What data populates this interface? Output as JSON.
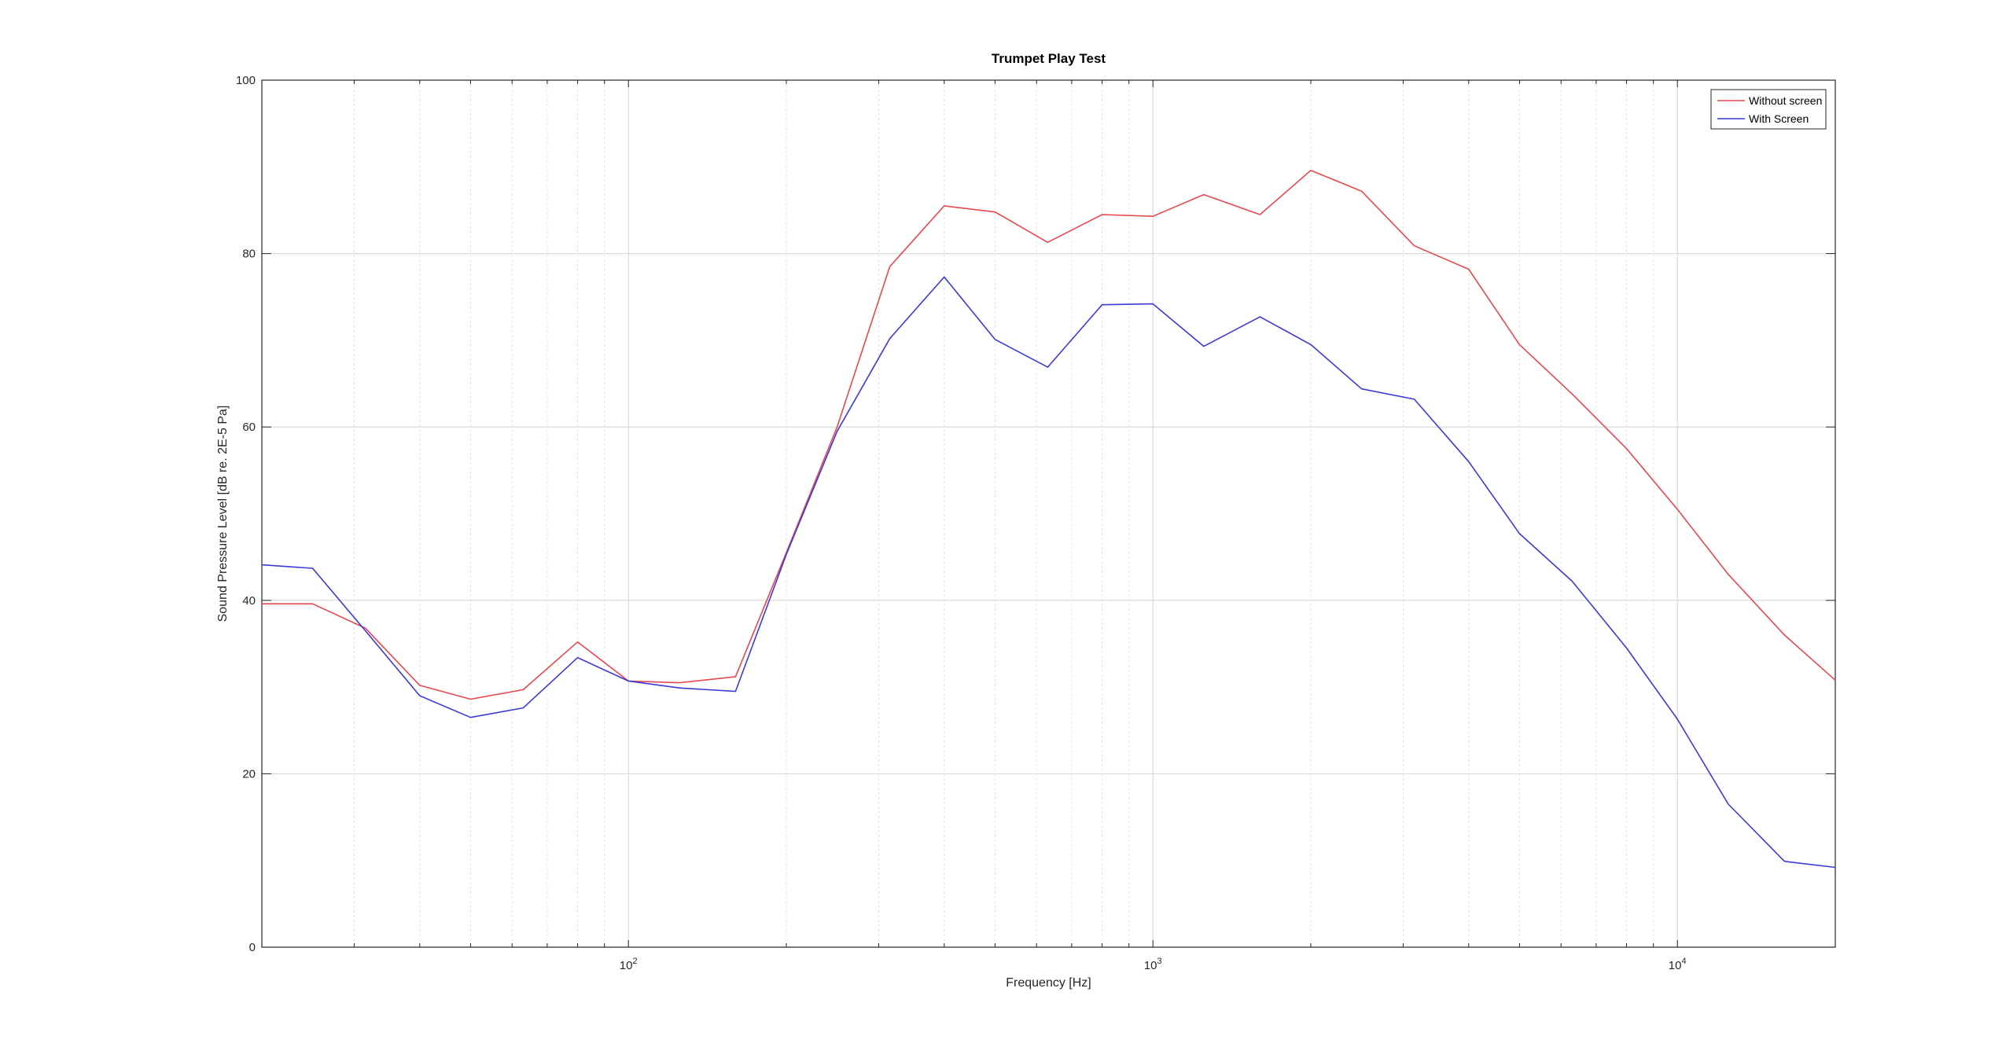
{
  "chart_data": {
    "type": "line",
    "title": "Trumpet Play Test",
    "xlabel": "Frequency [Hz]",
    "ylabel": "Sound Pressure Level [dB re. 2E-5 Pa]",
    "xscale": "log",
    "xlim": [
      20,
      20000
    ],
    "ylim": [
      0,
      100
    ],
    "yticks": [
      0,
      20,
      40,
      60,
      80,
      100
    ],
    "xticks": [
      {
        "value": 100,
        "base": "10",
        "exp": "2"
      },
      {
        "value": 1000,
        "base": "10",
        "exp": "3"
      },
      {
        "value": 10000,
        "base": "10",
        "exp": "4"
      }
    ],
    "grid": true,
    "legend_position": "top-right",
    "x": [
      20,
      25,
      31.5,
      40,
      50,
      63,
      80,
      100,
      125,
      160,
      200,
      250,
      315,
      400,
      500,
      630,
      800,
      1000,
      1250,
      1600,
      2000,
      2500,
      3150,
      4000,
      5000,
      6300,
      8000,
      10000,
      12500,
      16000,
      20000
    ],
    "series": [
      {
        "name": "Without screen",
        "color": "#e8474f",
        "values": [
          39.6,
          39.6,
          36.8,
          30.2,
          28.6,
          29.7,
          35.2,
          30.7,
          30.5,
          31.2,
          45.5,
          60.0,
          78.5,
          85.5,
          84.8,
          81.3,
          84.5,
          84.3,
          86.8,
          84.5,
          89.6,
          87.2,
          80.9,
          78.2,
          69.5,
          63.8,
          57.5,
          50.5,
          43.0,
          36.0,
          30.8
        ]
      },
      {
        "name": "With Screen",
        "color": "#3a3ad6",
        "values": [
          44.1,
          43.7,
          36.5,
          29.0,
          26.5,
          27.6,
          33.4,
          30.7,
          29.9,
          29.5,
          45.3,
          59.5,
          70.2,
          77.3,
          70.1,
          66.9,
          74.1,
          74.2,
          69.3,
          72.7,
          69.5,
          64.4,
          63.2,
          56.0,
          47.7,
          42.2,
          34.5,
          26.3,
          16.5,
          9.9,
          9.2
        ]
      }
    ]
  }
}
